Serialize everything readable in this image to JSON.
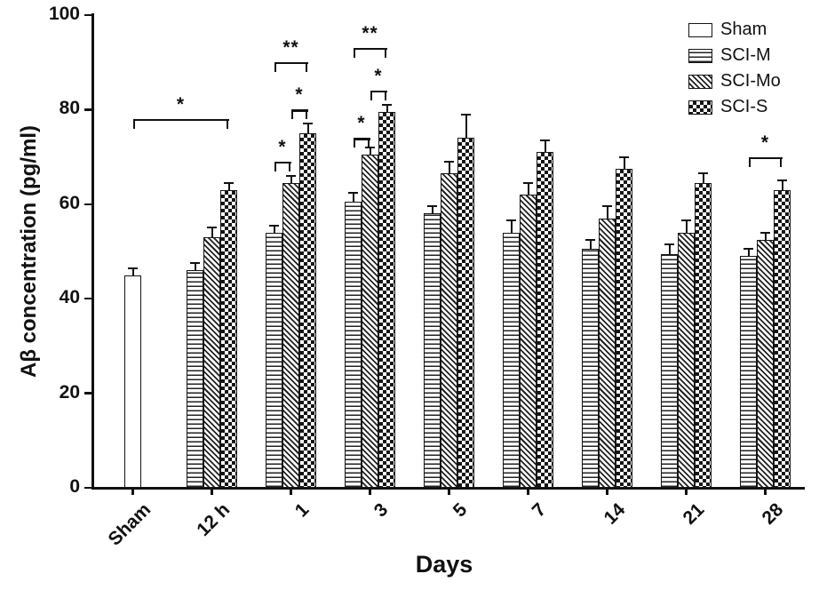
{
  "chart_data": {
    "type": "bar",
    "title": "",
    "xlabel": "Days",
    "ylabel": "Aβ concentration (pg/ml)",
    "ylim": [
      0,
      100
    ],
    "yticks": [
      0,
      20,
      40,
      60,
      80,
      100
    ],
    "grid": false,
    "legend_position": "top-right",
    "categories": [
      "Sham",
      "12 h",
      "1",
      "3",
      "5",
      "7",
      "14",
      "21",
      "28"
    ],
    "series": [
      {
        "name": "Sham",
        "pattern": "plain",
        "values": [
          45,
          null,
          null,
          null,
          null,
          null,
          null,
          null,
          null
        ],
        "errors": [
          1.5,
          null,
          null,
          null,
          null,
          null,
          null,
          null,
          null
        ]
      },
      {
        "name": "SCI-M",
        "pattern": "hlines",
        "values": [
          null,
          46,
          54,
          60.5,
          58,
          54,
          50.5,
          49.5,
          49
        ],
        "errors": [
          null,
          1.5,
          1.5,
          2,
          1.5,
          2.5,
          2,
          2,
          1.5
        ]
      },
      {
        "name": "SCI-Mo",
        "pattern": "diag",
        "values": [
          null,
          53,
          64.5,
          70.5,
          66.5,
          62,
          57,
          54,
          52.5
        ],
        "errors": [
          null,
          2,
          1.5,
          1.5,
          2.5,
          2.5,
          2.5,
          2.5,
          1.5
        ]
      },
      {
        "name": "SCI-S",
        "pattern": "checker",
        "values": [
          null,
          63,
          75,
          79.5,
          74,
          71,
          67.5,
          64.5,
          63
        ],
        "errors": [
          null,
          1.5,
          2,
          1.5,
          5,
          2.5,
          2.5,
          2,
          2
        ]
      }
    ],
    "significance_brackets": [
      {
        "label": "*",
        "x1": {
          "cat": 0,
          "series": 0
        },
        "x2": {
          "cat": 1,
          "series": 3
        },
        "y": 78
      },
      {
        "label": "*",
        "x1": {
          "cat": 2,
          "series": 1
        },
        "x2": {
          "cat": 2,
          "series": 2
        },
        "y": 69
      },
      {
        "label": "*",
        "x1": {
          "cat": 2,
          "series": 2
        },
        "x2": {
          "cat": 2,
          "series": 3
        },
        "y": 80
      },
      {
        "label": "**",
        "x1": {
          "cat": 2,
          "series": 1
        },
        "x2": {
          "cat": 2,
          "series": 3
        },
        "y": 90
      },
      {
        "label": "*",
        "x1": {
          "cat": 3,
          "series": 1
        },
        "x2": {
          "cat": 3,
          "series": 2
        },
        "y": 74
      },
      {
        "label": "*",
        "x1": {
          "cat": 3,
          "series": 2
        },
        "x2": {
          "cat": 3,
          "series": 3
        },
        "y": 84
      },
      {
        "label": "**",
        "x1": {
          "cat": 3,
          "series": 1
        },
        "x2": {
          "cat": 3,
          "series": 3
        },
        "y": 93
      },
      {
        "label": "*",
        "x1": {
          "cat": 8,
          "series": 1
        },
        "x2": {
          "cat": 8,
          "series": 3
        },
        "y": 70
      }
    ]
  },
  "colors": {
    "axis": "#111111",
    "bar_border": "#151515",
    "background": "#ffffff"
  }
}
